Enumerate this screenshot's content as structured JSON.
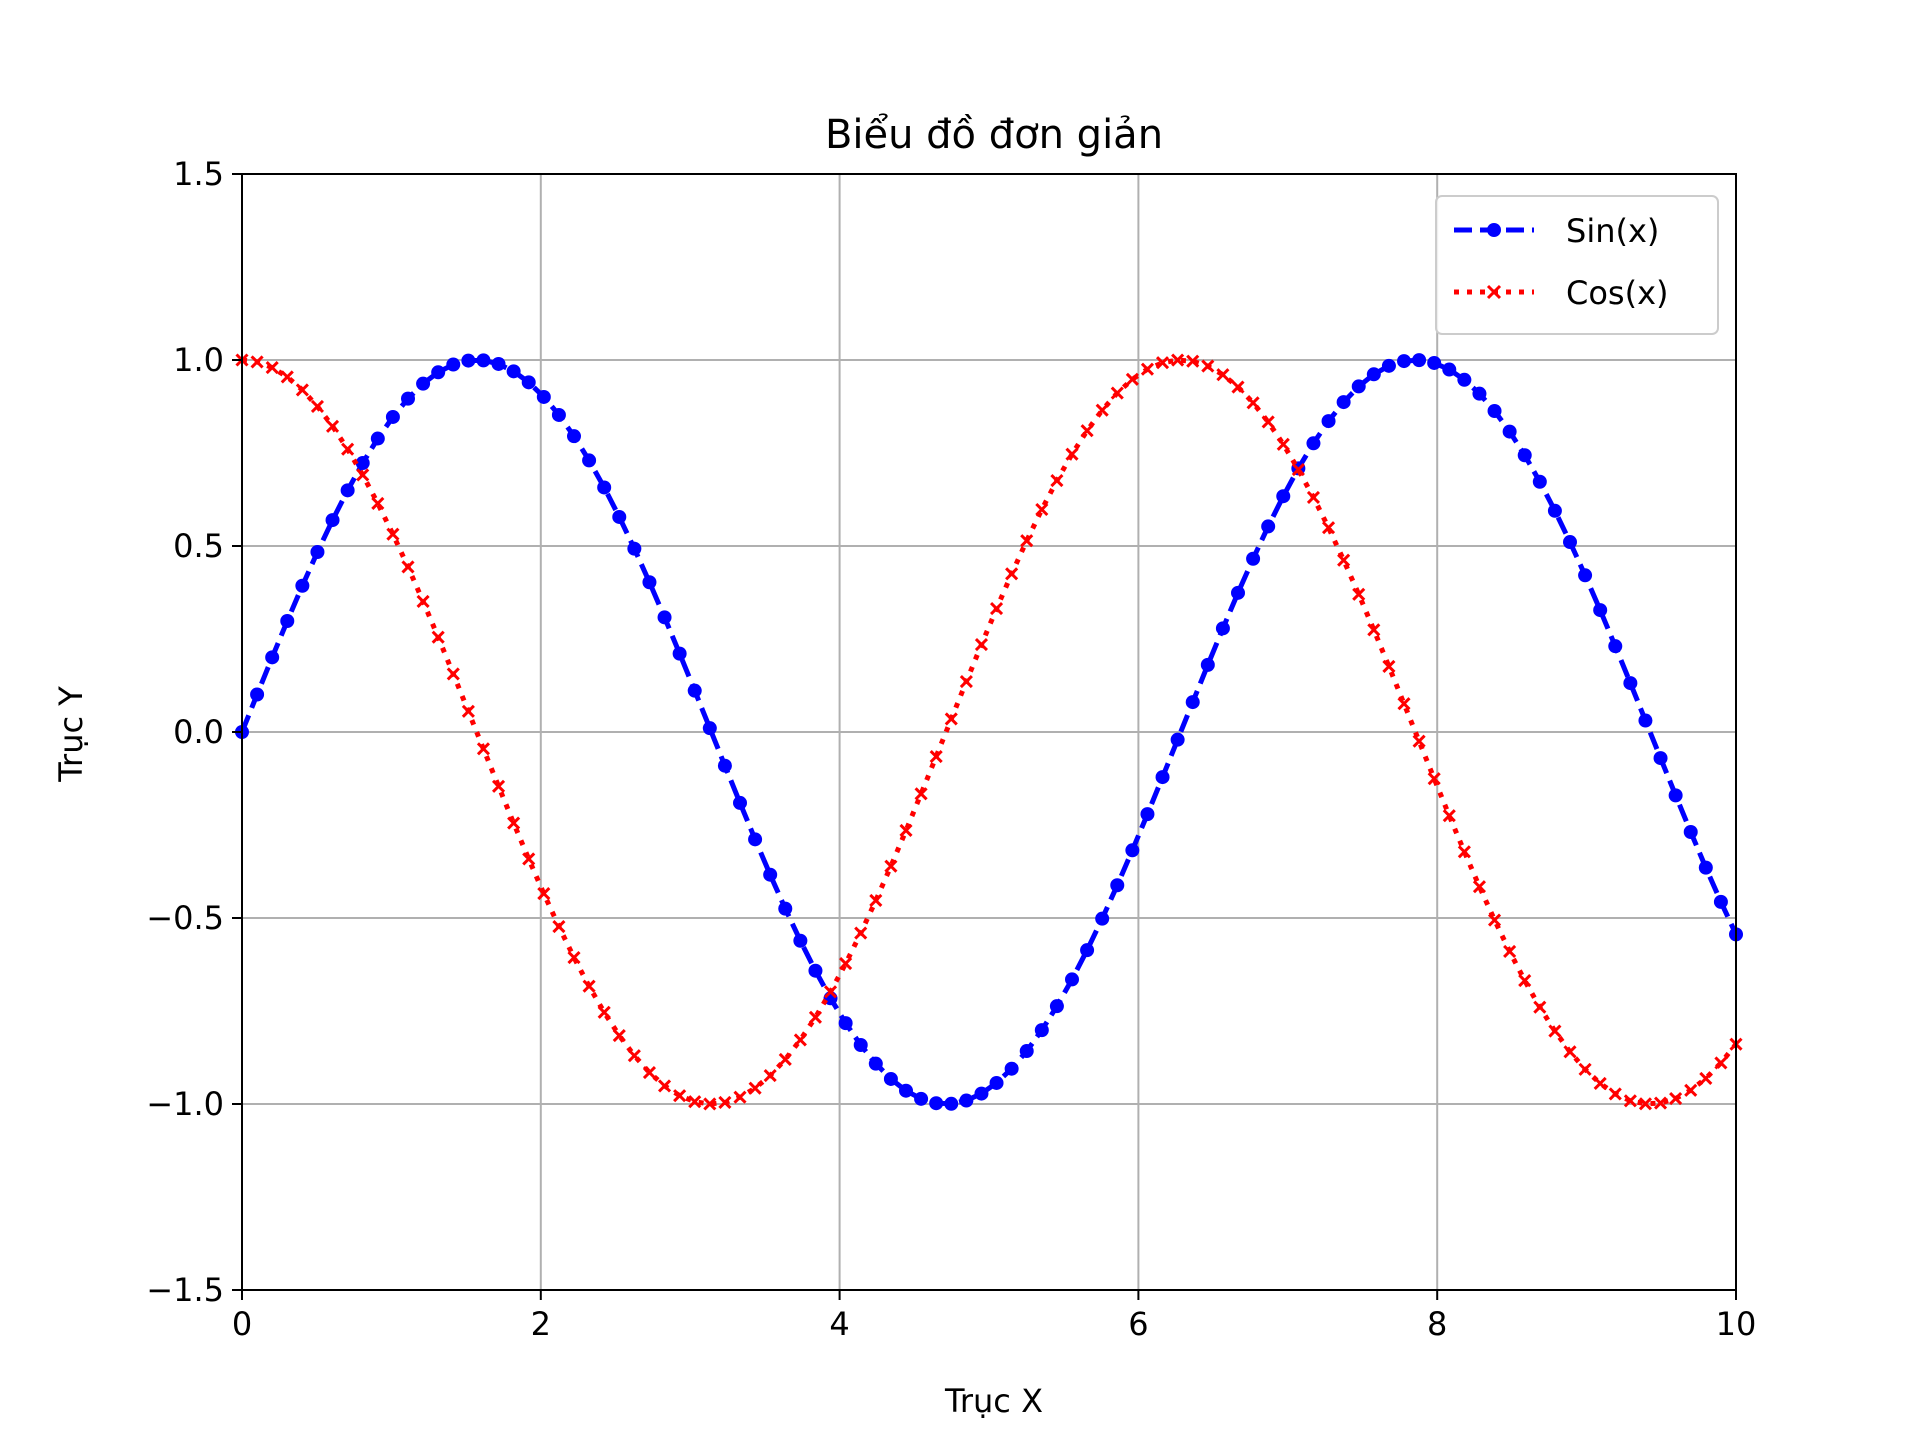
{
  "chart_data": {
    "type": "line",
    "title": "Biểu đồ đơn giản",
    "xlabel": "Trục X",
    "ylabel": "Trục Y",
    "xlim": [
      0,
      10
    ],
    "ylim": [
      -1.5,
      1.5
    ],
    "xticks": [
      0,
      2,
      4,
      6,
      8,
      10
    ],
    "xtick_labels": [
      "0",
      "2",
      "4",
      "6",
      "8",
      "10"
    ],
    "yticks": [
      -1.5,
      -1.0,
      -0.5,
      0.0,
      0.5,
      1.0,
      1.5
    ],
    "ytick_labels": [
      "−1.5",
      "−1.0",
      "−0.5",
      "0.0",
      "0.5",
      "1.0",
      "1.5"
    ],
    "grid": true,
    "legend_position": "upper right",
    "x_range": {
      "start": 0,
      "end": 10,
      "num_points": 100
    },
    "series": [
      {
        "name": "Sin(x)",
        "function": "sin",
        "color": "#0000ff",
        "line_style": "dashed",
        "marker": "circle"
      },
      {
        "name": "Cos(x)",
        "function": "cos",
        "color": "#ff0000",
        "line_style": "dotted",
        "marker": "x"
      }
    ]
  }
}
